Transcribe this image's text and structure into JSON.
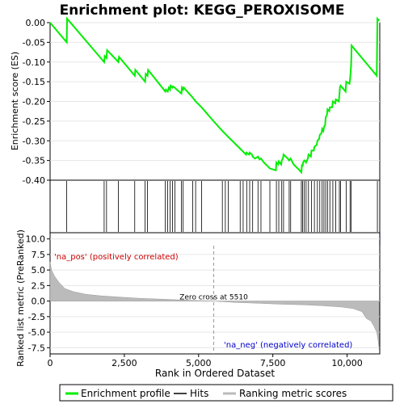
{
  "chart_data": [
    {
      "type": "line",
      "title": "Enrichment plot: KEGG_PEROXISOME",
      "ylabel": "Enrichment score (ES)",
      "ylim": [
        -0.4,
        0.0
      ],
      "y_ticks": [
        "0.00",
        "-0.05",
        "-0.10",
        "-0.15",
        "-0.20",
        "-0.25",
        "-0.30",
        "-0.35",
        "-0.40"
      ],
      "xlim": [
        0,
        11100
      ],
      "grid": true,
      "series": [
        {
          "name": "Enrichment profile",
          "color": "#00ee00",
          "x": [
            0,
            560,
            570,
            1820,
            1840,
            1900,
            1920,
            2300,
            2320,
            2850,
            2870,
            3200,
            3220,
            3280,
            3300,
            3880,
            3900,
            3960,
            4000,
            4040,
            4060,
            4120,
            4140,
            4200,
            4220,
            4420,
            4440,
            4480,
            4500,
            4800,
            4900,
            5100,
            5500,
            5800,
            6000,
            6400,
            6600,
            6620,
            6700,
            6720,
            6800,
            6820,
            6900,
            7000,
            7050,
            7100,
            7200,
            7400,
            7600,
            7620,
            7680,
            7700,
            7780,
            7800,
            7840,
            7860,
            8000,
            8050,
            8100,
            8200,
            8400,
            8460,
            8480,
            8500,
            8520,
            8560,
            8600,
            8620,
            8680,
            8700,
            8780,
            8800,
            8880,
            8900,
            8980,
            9000,
            9060,
            9080,
            9140,
            9160,
            9200,
            9220,
            9260,
            9280,
            9320,
            9340,
            9400,
            9420,
            9500,
            9520,
            9600,
            9620,
            9720,
            9740,
            9760,
            9780,
            9950,
            9970,
            10080,
            10100,
            10120,
            10140,
            10150,
            11000,
            11020,
            11080
          ],
          "values": [
            0.0,
            -0.05,
            0.01,
            -0.1,
            -0.085,
            -0.09,
            -0.07,
            -0.1,
            -0.087,
            -0.135,
            -0.12,
            -0.15,
            -0.13,
            -0.135,
            -0.12,
            -0.175,
            -0.17,
            -0.175,
            -0.165,
            -0.17,
            -0.16,
            -0.165,
            -0.162,
            -0.165,
            -0.167,
            -0.18,
            -0.165,
            -0.17,
            -0.165,
            -0.19,
            -0.2,
            -0.215,
            -0.25,
            -0.275,
            -0.29,
            -0.32,
            -0.335,
            -0.33,
            -0.335,
            -0.33,
            -0.335,
            -0.34,
            -0.345,
            -0.34,
            -0.347,
            -0.345,
            -0.355,
            -0.37,
            -0.375,
            -0.355,
            -0.36,
            -0.352,
            -0.36,
            -0.35,
            -0.345,
            -0.335,
            -0.345,
            -0.35,
            -0.345,
            -0.36,
            -0.375,
            -0.38,
            -0.36,
            -0.365,
            -0.355,
            -0.35,
            -0.352,
            -0.355,
            -0.345,
            -0.335,
            -0.34,
            -0.325,
            -0.325,
            -0.315,
            -0.31,
            -0.3,
            -0.295,
            -0.285,
            -0.28,
            -0.27,
            -0.275,
            -0.265,
            -0.26,
            -0.24,
            -0.235,
            -0.22,
            -0.225,
            -0.215,
            -0.215,
            -0.2,
            -0.205,
            -0.195,
            -0.2,
            -0.185,
            -0.165,
            -0.16,
            -0.175,
            -0.15,
            -0.155,
            -0.145,
            -0.125,
            -0.1,
            -0.058,
            -0.135,
            0.01,
            0.005
          ]
        }
      ],
      "hits_x": [
        560,
        1820,
        1900,
        2300,
        2850,
        3200,
        3280,
        3880,
        3960,
        4040,
        4120,
        4200,
        4420,
        4480,
        4800,
        4900,
        5100,
        5800,
        5900,
        6000,
        6400,
        6500,
        6620,
        6720,
        6820,
        7000,
        7100,
        7400,
        7620,
        7700,
        7800,
        7860,
        8050,
        8100,
        8460,
        8500,
        8560,
        8620,
        8700,
        8800,
        8900,
        9000,
        9080,
        9160,
        9220,
        9280,
        9340,
        9420,
        9520,
        9620,
        9740,
        9780,
        9970,
        10100,
        10140,
        11020
      ]
    },
    {
      "type": "area",
      "xlabel": "Rank in Ordered Dataset",
      "ylabel": "Ranked list metric (PreRanked)",
      "ylim": [
        -8.5,
        11.0
      ],
      "y_ticks": [
        "10.0",
        "7.5",
        "5.0",
        "2.5",
        "0.0",
        "-2.5",
        "-5.0",
        "-7.5"
      ],
      "x_ticks": [
        "0",
        "2,500",
        "5,000",
        "7,500",
        "10,000"
      ],
      "xlim": [
        0,
        11100
      ],
      "series": [
        {
          "name": "Ranking metric scores",
          "color": "#bbbbbb",
          "x": [
            0,
            50,
            150,
            300,
            500,
            800,
            1200,
            1700,
            2300,
            3000,
            3800,
            4600,
            5510,
            6200,
            7000,
            7800,
            8500,
            9200,
            9800,
            10200,
            10500,
            10650,
            10800,
            10900,
            11000,
            11050,
            11080
          ],
          "values": [
            6.3,
            5.0,
            4.0,
            3.0,
            2.0,
            1.5,
            1.1,
            0.85,
            0.65,
            0.45,
            0.3,
            0.15,
            0.0,
            -0.2,
            -0.35,
            -0.5,
            -0.6,
            -0.75,
            -0.95,
            -1.2,
            -1.7,
            -2.8,
            -3.2,
            -4.0,
            -5.0,
            -6.5,
            -7.8
          ]
        }
      ],
      "zero_cross_label": "Zero cross at 5510",
      "zero_cross_x": 5510,
      "pos_label": "'na_pos' (positively correlated)",
      "neg_label": "'na_neg' (negatively correlated)"
    }
  ],
  "legend": [
    {
      "label": "Enrichment profile",
      "color": "#00ee00"
    },
    {
      "label": "Hits",
      "color": "#000000"
    },
    {
      "label": "Ranking metric scores",
      "color": "#bbbbbb"
    }
  ]
}
